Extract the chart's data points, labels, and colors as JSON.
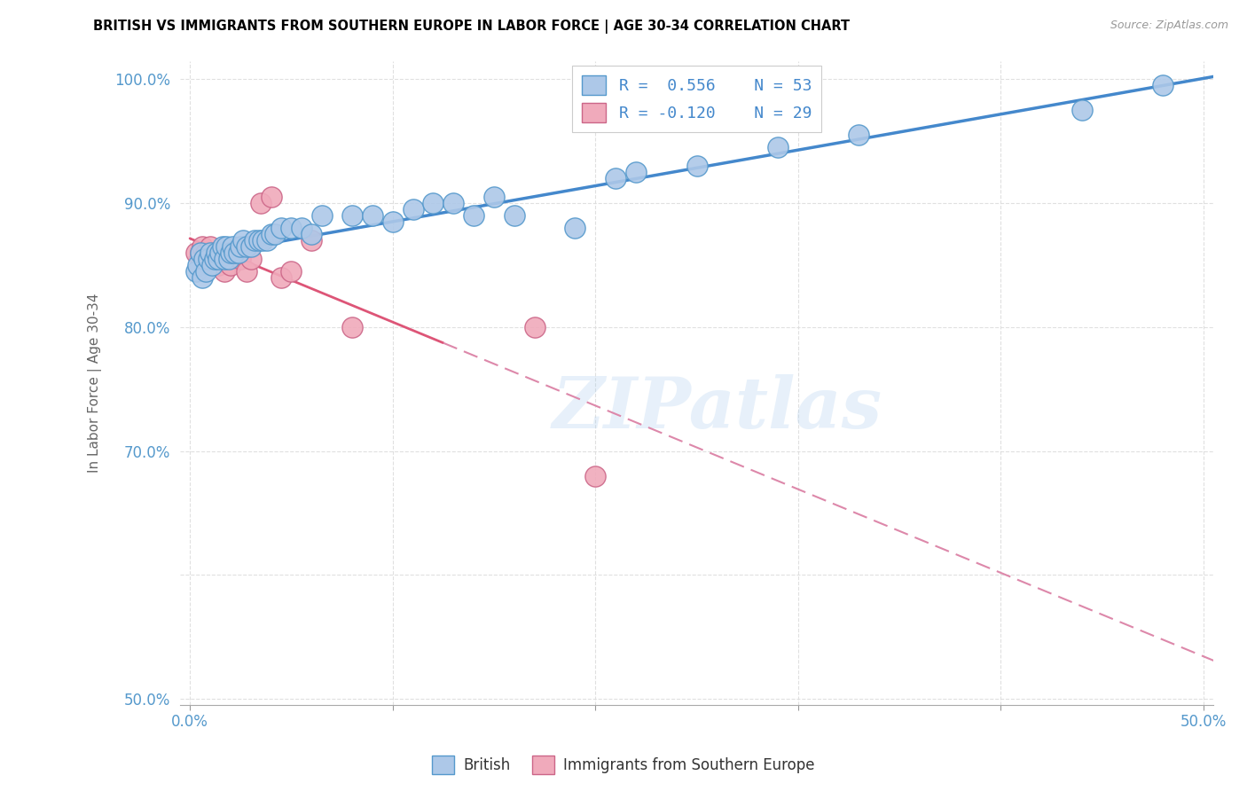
{
  "title": "BRITISH VS IMMIGRANTS FROM SOUTHERN EUROPE IN LABOR FORCE | AGE 30-34 CORRELATION CHART",
  "source": "Source: ZipAtlas.com",
  "ylabel": "In Labor Force | Age 30-34",
  "xlim": [
    -0.005,
    0.505
  ],
  "ylim": [
    0.495,
    1.015
  ],
  "xtick_vals": [
    0.0,
    0.1,
    0.2,
    0.3,
    0.4,
    0.5
  ],
  "xtick_labels": [
    "0.0%",
    "",
    "",
    "",
    "",
    "50.0%"
  ],
  "ytick_vals": [
    0.5,
    0.6,
    0.7,
    0.8,
    0.9,
    1.0
  ],
  "ytick_labels": [
    "50.0%",
    "",
    "70.0%",
    "80.0%",
    "90.0%",
    "100.0%"
  ],
  "british_color": "#adc8e8",
  "british_edge_color": "#5599cc",
  "immigrant_color": "#f0aabb",
  "immigrant_edge_color": "#cc6688",
  "british_line_color": "#4488cc",
  "immigrant_line_color_solid": "#dd5577",
  "immigrant_line_color_dash": "#dd88aa",
  "watermark": "ZIPatlas",
  "legend_line1": "R =  0.556    N = 53",
  "legend_line2": "R = -0.120    N = 29",
  "tick_color": "#5599cc",
  "ylabel_color": "#666666",
  "british_x": [
    0.003,
    0.004,
    0.005,
    0.006,
    0.007,
    0.008,
    0.009,
    0.01,
    0.011,
    0.012,
    0.013,
    0.014,
    0.015,
    0.016,
    0.017,
    0.018,
    0.019,
    0.02,
    0.021,
    0.022,
    0.024,
    0.025,
    0.026,
    0.028,
    0.03,
    0.032,
    0.034,
    0.036,
    0.038,
    0.04,
    0.042,
    0.045,
    0.05,
    0.055,
    0.06,
    0.065,
    0.08,
    0.09,
    0.1,
    0.11,
    0.12,
    0.13,
    0.14,
    0.15,
    0.16,
    0.19,
    0.21,
    0.22,
    0.25,
    0.29,
    0.33,
    0.44,
    0.48
  ],
  "british_y": [
    0.845,
    0.85,
    0.86,
    0.84,
    0.855,
    0.845,
    0.855,
    0.86,
    0.85,
    0.855,
    0.86,
    0.855,
    0.86,
    0.865,
    0.855,
    0.865,
    0.855,
    0.86,
    0.865,
    0.86,
    0.86,
    0.865,
    0.87,
    0.865,
    0.865,
    0.87,
    0.87,
    0.87,
    0.87,
    0.875,
    0.875,
    0.88,
    0.88,
    0.88,
    0.875,
    0.89,
    0.89,
    0.89,
    0.885,
    0.895,
    0.9,
    0.9,
    0.89,
    0.905,
    0.89,
    0.88,
    0.92,
    0.925,
    0.93,
    0.945,
    0.955,
    0.975,
    0.995
  ],
  "immigrant_x": [
    0.003,
    0.005,
    0.006,
    0.007,
    0.008,
    0.009,
    0.01,
    0.011,
    0.012,
    0.013,
    0.014,
    0.015,
    0.016,
    0.017,
    0.018,
    0.019,
    0.02,
    0.022,
    0.025,
    0.028,
    0.03,
    0.035,
    0.04,
    0.045,
    0.05,
    0.06,
    0.08,
    0.17,
    0.2
  ],
  "immigrant_y": [
    0.86,
    0.86,
    0.865,
    0.855,
    0.86,
    0.85,
    0.865,
    0.85,
    0.86,
    0.855,
    0.85,
    0.86,
    0.855,
    0.845,
    0.86,
    0.855,
    0.85,
    0.86,
    0.855,
    0.845,
    0.855,
    0.9,
    0.905,
    0.84,
    0.845,
    0.87,
    0.8,
    0.8,
    0.68
  ],
  "british_trendline_x": [
    0.0,
    0.505
  ],
  "immigrant_trendline_x": [
    0.0,
    0.505
  ],
  "brit_r": 0.556,
  "imm_r": -0.12
}
